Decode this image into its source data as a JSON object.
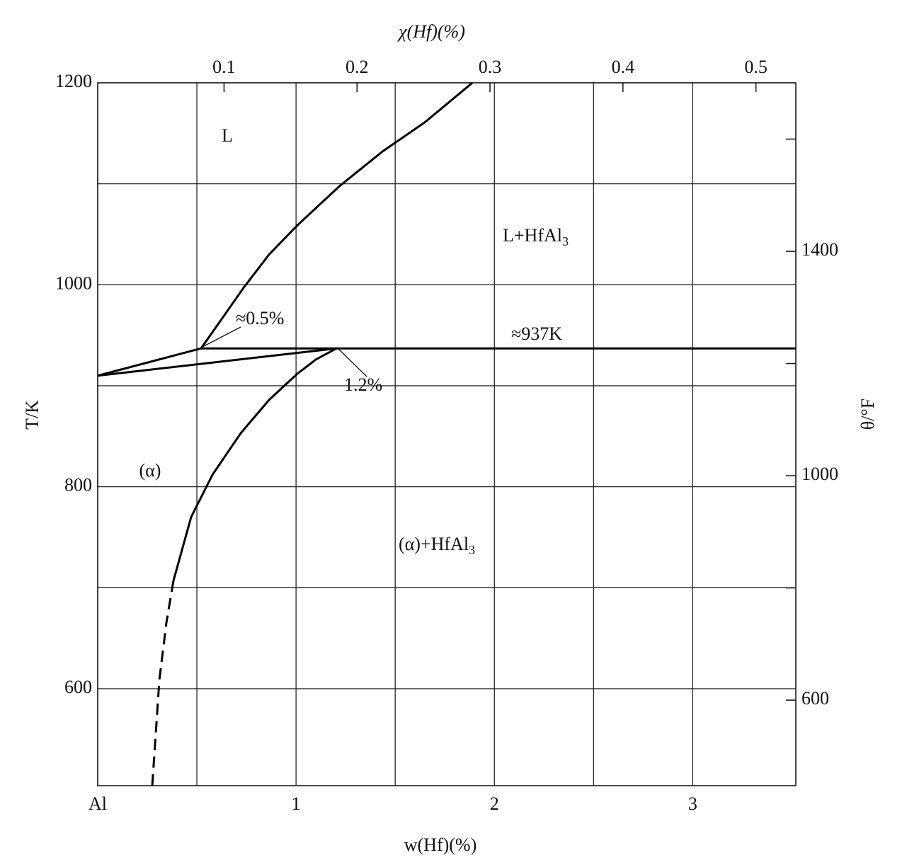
{
  "chart_data": {
    "type": "line",
    "x_title": "w(Hf)(%)",
    "x2_title": "χ(Hf)(%)",
    "y_title": "T/K",
    "y2_title": "θ/°F",
    "xlim": [
      0,
      3.52
    ],
    "xticks": [
      {
        "value": 0,
        "label": "Al"
      },
      1,
      2,
      3
    ],
    "xminor": [
      0.5,
      1.5,
      2.5
    ],
    "x2lim": [
      0.005,
      0.53
    ],
    "x2ticks": [
      0.1,
      0.2,
      0.3,
      0.4,
      0.5
    ],
    "ylim": [
      504,
      1200
    ],
    "yticks": [
      600,
      800,
      1000,
      1200
    ],
    "yminor": [
      700,
      900,
      1100
    ],
    "y2lim": [
      447.5,
      1700.3
    ],
    "y2ticks": [
      600,
      1000,
      1400
    ],
    "y2minor": [
      800,
      1200,
      1600
    ],
    "grid": true,
    "series": [
      {
        "color": "#000000",
        "dashed": false,
        "x": [
          0.521,
          0.614,
          0.739,
          0.864,
          1.007,
          1.221,
          1.436,
          1.65,
          1.889
        ],
        "values": [
          937,
          963,
          998,
          1030,
          1059,
          1098,
          1132,
          1161,
          1200
        ]
      },
      {
        "color": "#000000",
        "dashed": false,
        "x": [
          0,
          0.521
        ],
        "values": [
          910,
          937
        ]
      },
      {
        "color": "#000000",
        "dashed": false,
        "x": [
          0,
          1.204
        ],
        "values": [
          910,
          937
        ]
      },
      {
        "color": "#000000",
        "dashed": false,
        "x": [
          0.521,
          3.52
        ],
        "values": [
          937,
          937
        ]
      },
      {
        "color": "#000000",
        "dashed": false,
        "x": [
          1.204,
          1.1,
          1.007,
          0.864,
          0.721,
          0.579,
          0.471,
          0.382
        ],
        "values": [
          937,
          926,
          912,
          886,
          853,
          812,
          770,
          707
        ]
      },
      {
        "color": "#000000",
        "dashed": true,
        "x": [
          0.382,
          0.346,
          0.311,
          0.275
        ],
        "values": [
          707,
          665,
          609,
          504
        ]
      }
    ],
    "annotations": {
      "liquid": "L",
      "liquid_hfal3": {
        "text": "L+HfAl",
        "sub": "3"
      },
      "eutectic_liquid": "≈0.5%",
      "eutectic_temp": "≈937K",
      "max_solubility": "1.2%",
      "alpha": "(α)",
      "alpha_hfal3": {
        "text": "(α)+HfAl",
        "sub": "3"
      }
    }
  }
}
